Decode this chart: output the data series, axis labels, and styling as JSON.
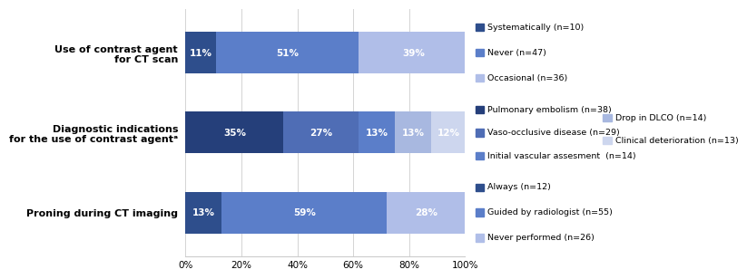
{
  "bars": [
    {
      "label": "Use of contrast agent\nfor CT scan",
      "segments": [
        11,
        51,
        39
      ],
      "colors": [
        "#2e4e8c",
        "#5b7ec9",
        "#b0bee8"
      ],
      "pct_labels": [
        "11%",
        "51%",
        "39%"
      ]
    },
    {
      "label": "Diagnostic indications\nfor the use of contrast agentᵃ",
      "segments": [
        35,
        27,
        13,
        13,
        12
      ],
      "colors": [
        "#253f7a",
        "#4f6db5",
        "#5b7ec9",
        "#a8b8e0",
        "#cdd6ee"
      ],
      "pct_labels": [
        "35%",
        "27%",
        "13%",
        "13%",
        "12%"
      ]
    },
    {
      "label": "Proning during CT imaging",
      "segments": [
        13,
        59,
        28
      ],
      "colors": [
        "#2e4e8c",
        "#5b7ec9",
        "#b0bee8"
      ],
      "pct_labels": [
        "13%",
        "59%",
        "28%"
      ]
    }
  ],
  "legend_groups": [
    {
      "row": 0,
      "col1": [
        {
          "label": "Systematically (n=10)",
          "color": "#2e4e8c"
        },
        {
          "label": "Never (n=47)",
          "color": "#5b7ec9"
        },
        {
          "label": "Occasional (n=36)",
          "color": "#b0bee8"
        }
      ],
      "col2": []
    },
    {
      "row": 1,
      "col1": [
        {
          "label": "Pulmonary embolism (n=38)",
          "color": "#253f7a"
        },
        {
          "label": "Vaso-occlusive disease (n=29)",
          "color": "#4f6db5"
        },
        {
          "label": "Initial vascular assesment  (n=14)",
          "color": "#5b7ec9"
        }
      ],
      "col2": [
        {
          "label": "Drop in DLCO (n=14)",
          "color": "#a8b8e0"
        },
        {
          "label": "Clinical deterioration (n=13)",
          "color": "#cdd6ee"
        }
      ]
    },
    {
      "row": 2,
      "col1": [
        {
          "label": "Always (n=12)",
          "color": "#2e4e8c"
        },
        {
          "label": "Guided by radiologist (n=55)",
          "color": "#5b7ec9"
        },
        {
          "label": "Never performed (n=26)",
          "color": "#b0bee8"
        }
      ],
      "col2": []
    }
  ],
  "xlabel_ticks": [
    "0%",
    "20%",
    "40%",
    "60%",
    "80%",
    "100%"
  ],
  "xlabel_vals": [
    0,
    20,
    40,
    60,
    80,
    100
  ],
  "background_color": "#ffffff",
  "bar_height": 0.52,
  "label_fontsize": 8.0,
  "tick_fontsize": 7.5,
  "legend_fontsize": 6.8,
  "pct_fontsize": 7.5
}
